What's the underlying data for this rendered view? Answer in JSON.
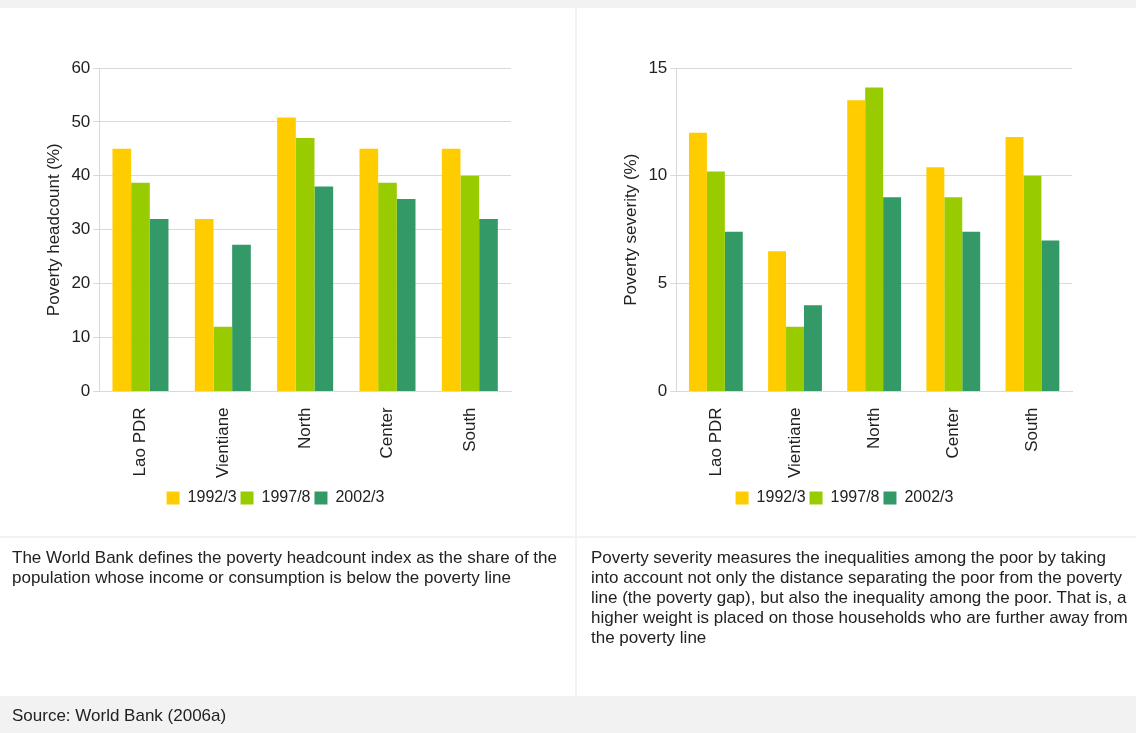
{
  "chart_data": [
    {
      "type": "bar",
      "ylabel": "Poverty headcount (%)",
      "categories": [
        "Lao PDR",
        "Vientiane",
        "North",
        "Center",
        "South"
      ],
      "series": [
        {
          "name": "1992/3",
          "color": "#ffcc00",
          "values": [
            45,
            32,
            50.8,
            45,
            45
          ]
        },
        {
          "name": "1997/8",
          "color": "#99cc00",
          "values": [
            38.7,
            12,
            47,
            38.7,
            40
          ]
        },
        {
          "name": "2002/3",
          "color": "#339966",
          "values": [
            32,
            27.2,
            38,
            35.7,
            32
          ]
        }
      ],
      "ylim": [
        0,
        60
      ],
      "yticks": [
        0,
        10,
        20,
        30,
        40,
        50,
        60
      ],
      "grid": "y",
      "legend": "bottom",
      "annotations": [
        "The World Bank defines the poverty headcount index as the share of the population whose income or consumption is below the poverty line",
        "Source: World Bank (2006a)"
      ]
    },
    {
      "type": "bar",
      "ylabel": "Poverty severity (%)",
      "categories": [
        "Lao PDR",
        "Vientiane",
        "North",
        "Center",
        "South"
      ],
      "series": [
        {
          "name": "1992/3",
          "color": "#ffcc00",
          "values": [
            12,
            6.5,
            13.5,
            10.4,
            11.8
          ]
        },
        {
          "name": "1997/8",
          "color": "#99cc00",
          "values": [
            10.2,
            3,
            14.1,
            9,
            10
          ]
        },
        {
          "name": "2002/3",
          "color": "#339966",
          "values": [
            7.4,
            4,
            9,
            7.4,
            7
          ]
        }
      ],
      "ylim": [
        0,
        15
      ],
      "yticks": [
        0,
        5,
        10,
        15
      ],
      "grid": "y",
      "legend": "bottom",
      "annotations": [
        "Poverty severity measures the inequalities among the poor by taking into account not only the distance separating the poor from the poverty line (the poverty gap), but also the inequality among the poor. That is, a higher weight is placed on those households who are further away from the poverty line"
      ]
    }
  ]
}
